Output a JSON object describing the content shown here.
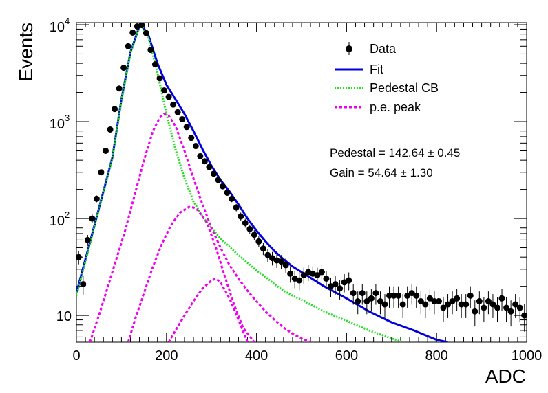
{
  "chart_data": {
    "type": "scatter",
    "title": "",
    "xlabel": "ADC",
    "ylabel": "Events",
    "xlim": [
      0,
      1000
    ],
    "ylim": [
      5.3,
      10500
    ],
    "yscale": "log",
    "grid": false,
    "legend_placement": "top-right",
    "x_ticks": [
      {
        "value": 0,
        "label": "0"
      },
      {
        "value": 200,
        "label": "200"
      },
      {
        "value": 400,
        "label": "400"
      },
      {
        "value": 600,
        "label": "600"
      },
      {
        "value": 800,
        "label": "800"
      },
      {
        "value": 1000,
        "label": "1000"
      }
    ],
    "y_ticks": [
      {
        "value": 10,
        "label": "10"
      },
      {
        "value": 100,
        "label": "10",
        "exp": "2"
      },
      {
        "value": 1000,
        "label": "10",
        "exp": "3"
      },
      {
        "value": 10000,
        "label": "10",
        "exp": "4"
      }
    ],
    "legend": [
      {
        "key": "data",
        "label": "Data",
        "color": "#000000",
        "style": "marker"
      },
      {
        "key": "fit",
        "label": "Fit",
        "color": "#0000dd",
        "style": "solid"
      },
      {
        "key": "ped",
        "label": "Pedestal CB",
        "color": "#22dd22",
        "style": "dotted"
      },
      {
        "key": "pe",
        "label": "p.e. peak",
        "color": "#ee00ee",
        "style": "dashed"
      }
    ],
    "annotations": [
      {
        "text": "Pedestal = 142.64 ± 0.45"
      },
      {
        "text": "Gain = 54.64 ± 1.30"
      }
    ],
    "series": [
      {
        "name": "Data",
        "kind": "points",
        "color": "#000000",
        "x": [
          5,
          15,
          25,
          35,
          45,
          55,
          65,
          75,
          85,
          95,
          105,
          115,
          125,
          135,
          145,
          155,
          165,
          175,
          185,
          195,
          205,
          215,
          225,
          235,
          245,
          255,
          265,
          275,
          285,
          295,
          305,
          315,
          325,
          335,
          345,
          355,
          365,
          375,
          385,
          395,
          405,
          415,
          425,
          435,
          445,
          455,
          465,
          475,
          485,
          495,
          505,
          515,
          525,
          535,
          545,
          555,
          565,
          575,
          585,
          595,
          605,
          615,
          625,
          635,
          645,
          655,
          665,
          675,
          685,
          695,
          705,
          715,
          725,
          735,
          745,
          755,
          765,
          775,
          785,
          795,
          805,
          815,
          825,
          835,
          845,
          855,
          865,
          875,
          885,
          895,
          905,
          915,
          925,
          935,
          945,
          955,
          965,
          975,
          985,
          995
        ],
        "y": [
          40,
          21,
          60,
          100,
          160,
          300,
          500,
          830,
          1350,
          2200,
          3600,
          6000,
          8300,
          9600,
          9900,
          8200,
          5500,
          3900,
          2800,
          2100,
          1800,
          1500,
          1250,
          1060,
          880,
          680,
          560,
          440,
          390,
          340,
          290,
          250,
          215,
          185,
          160,
          130,
          105,
          90,
          78,
          68,
          58,
          49,
          42,
          39,
          37,
          36,
          33,
          27,
          24,
          23,
          26,
          28,
          27,
          26,
          28,
          24,
          20,
          21,
          19,
          22,
          23,
          17,
          14,
          17,
          14,
          15,
          17,
          14,
          13,
          16,
          16,
          16,
          13,
          16,
          17,
          16,
          14,
          13,
          15,
          14,
          14,
          12,
          13,
          14,
          15,
          13,
          13,
          16,
          11,
          14,
          12,
          14,
          13,
          12,
          15,
          12,
          11,
          13,
          12,
          10
        ],
        "y_err": [
          6.3,
          4.6,
          7.7,
          10,
          12.6,
          17.3,
          22.4,
          28.8,
          36.7,
          46.9,
          60,
          77.5,
          91.1,
          98,
          99.5,
          90.6,
          74.2,
          62.4,
          52.9,
          45.8,
          42.4,
          38.7,
          35.4,
          32.6,
          29.7,
          26.1,
          23.7,
          21,
          19.7,
          18.4,
          17,
          15.8,
          14.7,
          13.6,
          12.6,
          11.4,
          10.2,
          9.5,
          8.8,
          8.2,
          7.6,
          7,
          6.5,
          6.2,
          6.1,
          6,
          5.7,
          5.2,
          4.9,
          4.8,
          5.1,
          5.3,
          5.2,
          5.1,
          5.3,
          4.9,
          4.5,
          4.6,
          4.4,
          4.7,
          4.8,
          4.1,
          3.7,
          4.1,
          3.7,
          3.9,
          4.1,
          3.7,
          3.6,
          4,
          4,
          4,
          3.6,
          4,
          4.1,
          4,
          3.7,
          3.6,
          3.9,
          3.7,
          3.7,
          3.5,
          3.6,
          3.7,
          3.9,
          3.6,
          3.6,
          4,
          3.3,
          3.7,
          3.5,
          3.7,
          3.6,
          3.5,
          3.9,
          3.5,
          3.3,
          3.6,
          3.5,
          3.2
        ]
      },
      {
        "name": "Fit",
        "kind": "line",
        "color": "#0000dd",
        "x": [
          0,
          20,
          40,
          60,
          80,
          100,
          120,
          140,
          145,
          160,
          180,
          200,
          220,
          240,
          260,
          280,
          300,
          320,
          340,
          360,
          380,
          400,
          420,
          440,
          460,
          480,
          500,
          550,
          600,
          650,
          700,
          750,
          800,
          825
        ],
        "y": [
          17,
          38,
          85,
          190,
          430,
          1700,
          5200,
          9700,
          9900,
          7800,
          4000,
          2400,
          1700,
          1200,
          800,
          520,
          350,
          250,
          190,
          140,
          100,
          75,
          58,
          46,
          38,
          32,
          28,
          20,
          15,
          11,
          8.5,
          7,
          5.6,
          5.3
        ]
      },
      {
        "name": "Pedestal CB",
        "kind": "line",
        "color": "#22dd22",
        "x": [
          0,
          20,
          40,
          60,
          80,
          100,
          120,
          140,
          145,
          160,
          180,
          200,
          220,
          240,
          260,
          280,
          300,
          320,
          340,
          360,
          380,
          400,
          420,
          440,
          460,
          480,
          500,
          550,
          600,
          650,
          700,
          725
        ],
        "y": [
          16,
          36,
          82,
          185,
          420,
          1650,
          5100,
          9500,
          9700,
          7400,
          3200,
          1200,
          520,
          260,
          150,
          105,
          80,
          62,
          51,
          42,
          35,
          29,
          25,
          21,
          18,
          16,
          14.5,
          11,
          8.8,
          7,
          5.8,
          5.3
        ]
      },
      {
        "name": "p.e. peak 1",
        "kind": "line",
        "color": "#ee00ee",
        "x": [
          30,
          50,
          70,
          90,
          110,
          130,
          150,
          170,
          185,
          195,
          205,
          220,
          240,
          260,
          280,
          300,
          320,
          340,
          360,
          380,
          400,
          420,
          440,
          460,
          480,
          500,
          520
        ],
        "y": [
          5.3,
          10,
          20,
          40,
          80,
          180,
          400,
          800,
          1100,
          1200,
          1150,
          900,
          500,
          260,
          140,
          80,
          50,
          33,
          24,
          18,
          14,
          11,
          9,
          7.5,
          6.5,
          5.8,
          5.3
        ]
      },
      {
        "name": "p.e. peak 2",
        "kind": "line",
        "color": "#ee00ee",
        "x": [
          115,
          130,
          150,
          170,
          190,
          210,
          230,
          250,
          260,
          270,
          290,
          310,
          330,
          350,
          370,
          395
        ],
        "y": [
          5.3,
          9,
          17,
          32,
          55,
          85,
          115,
          132,
          130,
          122,
          90,
          50,
          25,
          13,
          7.5,
          5.3
        ]
      },
      {
        "name": "p.e. peak 3",
        "kind": "line",
        "color": "#ee00ee",
        "x": [
          205,
          220,
          240,
          260,
          280,
          300,
          310,
          320,
          340,
          360,
          380
        ],
        "y": [
          5.3,
          7,
          10,
          14,
          19,
          23,
          24,
          22,
          15,
          9,
          5.3
        ]
      }
    ]
  }
}
